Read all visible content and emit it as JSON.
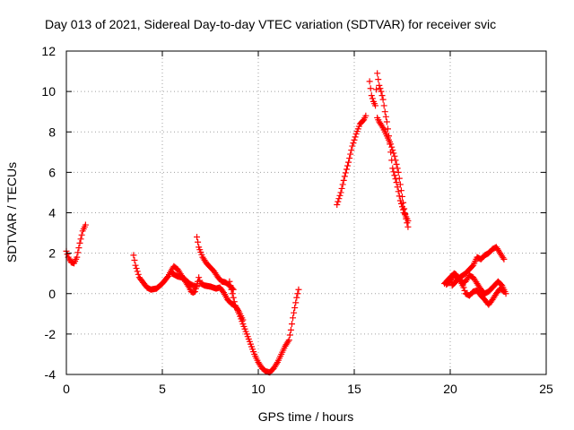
{
  "chart_data": {
    "type": "scatter",
    "title": "Day 013 of 2021, Sidereal Day-to-day VTEC variation (SDTVAR) for receiver svic",
    "xlabel": "GPS time / hours",
    "ylabel": "SDTVAR / TECUs",
    "xlim": [
      0,
      25
    ],
    "ylim": [
      -4,
      12
    ],
    "xticks": [
      0,
      5,
      10,
      15,
      20,
      25
    ],
    "yticks": [
      -4,
      -2,
      0,
      2,
      4,
      6,
      8,
      10,
      12
    ],
    "grid": true,
    "marker": "+",
    "colors": {
      "series": "#ff0000",
      "grid": "#a0a0a0",
      "axis": "#000000"
    },
    "series": [
      {
        "name": "SDTVAR",
        "segments": [
          [
            [
              0.0,
              2.1
            ],
            [
              0.1,
              1.8
            ],
            [
              0.25,
              1.55
            ],
            [
              0.4,
              1.5
            ],
            [
              0.55,
              1.8
            ],
            [
              0.7,
              2.5
            ],
            [
              0.85,
              3.1
            ],
            [
              1.0,
              3.4
            ]
          ],
          [
            [
              3.5,
              1.9
            ],
            [
              3.6,
              1.4
            ],
            [
              3.8,
              0.8
            ],
            [
              4.0,
              0.55
            ],
            [
              4.2,
              0.3
            ],
            [
              4.4,
              0.2
            ],
            [
              4.7,
              0.25
            ],
            [
              5.0,
              0.5
            ],
            [
              5.3,
              0.85
            ],
            [
              5.5,
              1.2
            ],
            [
              5.6,
              1.35
            ],
            [
              5.8,
              1.2
            ],
            [
              6.0,
              0.9
            ],
            [
              6.2,
              0.6
            ],
            [
              6.4,
              0.3
            ],
            [
              6.5,
              0.1
            ],
            [
              6.6,
              0.05
            ],
            [
              6.7,
              0.1
            ],
            [
              6.8,
              0.4
            ],
            [
              6.9,
              0.8
            ],
            [
              7.0,
              0.5
            ],
            [
              7.2,
              0.4
            ],
            [
              7.5,
              0.35
            ],
            [
              7.8,
              0.25
            ],
            [
              8.0,
              0.3
            ],
            [
              8.2,
              0.05
            ],
            [
              8.4,
              -0.3
            ],
            [
              8.6,
              -0.5
            ],
            [
              8.8,
              -0.6
            ],
            [
              9.0,
              -1.0
            ],
            [
              9.2,
              -1.5
            ],
            [
              9.4,
              -2.0
            ],
            [
              9.6,
              -2.5
            ],
            [
              9.8,
              -3.0
            ],
            [
              10.0,
              -3.4
            ],
            [
              10.2,
              -3.7
            ],
            [
              10.4,
              -3.85
            ],
            [
              10.6,
              -3.9
            ],
            [
              10.8,
              -3.7
            ],
            [
              11.0,
              -3.4
            ],
            [
              11.2,
              -3.0
            ],
            [
              11.4,
              -2.6
            ],
            [
              11.6,
              -2.3
            ],
            [
              11.7,
              -1.8
            ],
            [
              11.8,
              -1.2
            ],
            [
              11.9,
              -0.7
            ],
            [
              12.0,
              -0.2
            ],
            [
              12.1,
              0.2
            ]
          ],
          [
            [
              6.8,
              2.8
            ],
            [
              6.9,
              2.3
            ],
            [
              7.1,
              1.8
            ],
            [
              7.3,
              1.5
            ],
            [
              7.5,
              1.3
            ],
            [
              7.7,
              1.1
            ],
            [
              7.9,
              0.8
            ],
            [
              8.1,
              0.6
            ],
            [
              8.3,
              0.55
            ],
            [
              8.5,
              0.4
            ],
            [
              8.7,
              0.2
            ]
          ],
          [
            [
              5.5,
              1.0
            ],
            [
              5.8,
              0.85
            ],
            [
              6.0,
              0.8
            ],
            [
              6.2,
              0.7
            ],
            [
              6.4,
              0.5
            ],
            [
              6.6,
              0.4
            ],
            [
              6.8,
              0.35
            ]
          ],
          [
            [
              8.5,
              0.6
            ],
            [
              8.6,
              0.2
            ],
            [
              8.7,
              -0.2
            ],
            [
              8.8,
              -0.6
            ],
            [
              9.0,
              -0.9
            ],
            [
              9.2,
              -1.3
            ]
          ],
          [
            [
              14.1,
              4.4
            ],
            [
              14.3,
              5.0
            ],
            [
              14.5,
              5.8
            ],
            [
              14.7,
              6.5
            ],
            [
              14.9,
              7.3
            ],
            [
              15.1,
              7.9
            ],
            [
              15.3,
              8.4
            ],
            [
              15.5,
              8.6
            ],
            [
              15.6,
              8.8
            ]
          ],
          [
            [
              15.8,
              10.5
            ],
            [
              15.9,
              9.8
            ],
            [
              16.0,
              9.5
            ],
            [
              16.1,
              9.3
            ],
            [
              16.2,
              10.9
            ],
            [
              16.3,
              10.3
            ],
            [
              16.4,
              10.0
            ],
            [
              16.5,
              9.6
            ],
            [
              16.6,
              9.0
            ],
            [
              16.7,
              8.5
            ],
            [
              16.8,
              7.8
            ],
            [
              16.9,
              7.0
            ],
            [
              17.0,
              6.2
            ],
            [
              17.2,
              5.5
            ],
            [
              17.4,
              4.6
            ],
            [
              17.6,
              4.0
            ],
            [
              17.8,
              3.6
            ]
          ],
          [
            [
              16.2,
              8.7
            ],
            [
              16.3,
              8.5
            ],
            [
              16.5,
              8.2
            ],
            [
              16.7,
              7.8
            ],
            [
              16.9,
              7.4
            ],
            [
              17.1,
              6.8
            ],
            [
              17.3,
              6.0
            ],
            [
              17.4,
              5.4
            ],
            [
              17.5,
              4.8
            ],
            [
              17.6,
              4.2
            ],
            [
              17.7,
              3.7
            ],
            [
              17.8,
              3.3
            ]
          ],
          [
            [
              19.7,
              0.5
            ],
            [
              19.8,
              0.6
            ],
            [
              20.0,
              0.8
            ],
            [
              20.2,
              1.0
            ],
            [
              20.3,
              0.95
            ],
            [
              20.5,
              0.7
            ],
            [
              20.7,
              0.3
            ],
            [
              20.8,
              0.0
            ],
            [
              21.0,
              -0.1
            ],
            [
              21.2,
              0.1
            ],
            [
              21.4,
              0.15
            ],
            [
              21.6,
              -0.1
            ],
            [
              21.8,
              -0.3
            ],
            [
              22.0,
              -0.55
            ],
            [
              22.2,
              -0.3
            ],
            [
              22.4,
              0.0
            ],
            [
              22.6,
              0.25
            ],
            [
              22.8,
              0.1
            ]
          ],
          [
            [
              20.1,
              0.4
            ],
            [
              20.3,
              0.6
            ],
            [
              20.5,
              0.8
            ],
            [
              20.8,
              1.0
            ],
            [
              21.0,
              1.2
            ],
            [
              21.2,
              1.4
            ],
            [
              21.4,
              1.8
            ],
            [
              21.6,
              1.7
            ],
            [
              21.8,
              1.9
            ],
            [
              22.0,
              2.0
            ],
            [
              22.2,
              2.2
            ],
            [
              22.4,
              2.3
            ],
            [
              22.6,
              2.0
            ],
            [
              22.8,
              1.7
            ]
          ],
          [
            [
              19.8,
              0.45
            ],
            [
              20.0,
              0.6
            ],
            [
              20.2,
              0.9
            ],
            [
              20.4,
              0.8
            ],
            [
              20.6,
              0.5
            ],
            [
              20.8,
              0.6
            ],
            [
              21.0,
              0.9
            ],
            [
              21.2,
              0.8
            ],
            [
              21.4,
              0.5
            ],
            [
              21.6,
              0.2
            ],
            [
              21.8,
              0.0
            ],
            [
              22.0,
              0.1
            ],
            [
              22.2,
              0.3
            ],
            [
              22.5,
              0.6
            ],
            [
              22.7,
              0.4
            ],
            [
              22.9,
              0.0
            ]
          ]
        ]
      }
    ]
  }
}
